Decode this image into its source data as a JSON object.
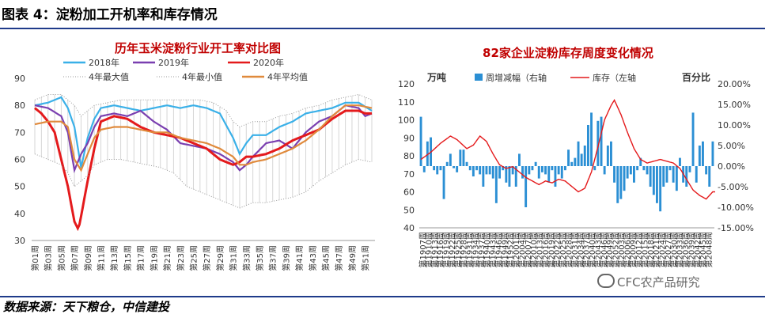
{
  "figure_title": "图表 4：淀粉加工开机率和库存情况",
  "source": "数据来源：天下粮仓，中信建投",
  "watermark": "CFC农产品研究",
  "colors": {
    "rule": "#1f3b8a",
    "chart_title": "#c00000",
    "y2018": "#3ab0e8",
    "y2019": "#7a3fb0",
    "y2020": "#e41a1c",
    "avg4": "#e08a3c",
    "band": "#999999",
    "bars": "#2b8fd4",
    "inventory": "#e41a1c"
  },
  "chart_data": [
    {
      "type": "line",
      "title": "历年玉米淀粉行业开工率对比图",
      "ylim": [
        30,
        90
      ],
      "yticks": [
        30,
        40,
        50,
        60,
        70,
        80,
        90
      ],
      "xlabels": [
        "第01周",
        "第03周",
        "第05周",
        "第07周",
        "第09周",
        "第11周",
        "第13周",
        "第15周",
        "第17周",
        "第19周",
        "第21周",
        "第23周",
        "第25周",
        "第27周",
        "第29周",
        "第31周",
        "第33周",
        "第35周",
        "第37周",
        "第39周",
        "第41周",
        "第43周",
        "第45周",
        "第47周",
        "第49周",
        "第51周"
      ],
      "x_count": 52,
      "legend": [
        "2018年",
        "2019年",
        "2020年",
        "4年最大值",
        "4年最小值",
        "4年平均值"
      ],
      "series": [
        {
          "name": "2018年",
          "key": "y2018",
          "style": "solid",
          "anchors": [
            [
              1,
              80
            ],
            [
              3,
              81
            ],
            [
              5,
              83
            ],
            [
              6,
              79
            ],
            [
              7,
              72
            ],
            [
              8,
              57
            ],
            [
              9,
              68
            ],
            [
              10,
              75
            ],
            [
              11,
              79
            ],
            [
              13,
              80
            ],
            [
              15,
              79
            ],
            [
              17,
              78
            ],
            [
              19,
              79
            ],
            [
              21,
              80
            ],
            [
              23,
              79
            ],
            [
              25,
              80
            ],
            [
              27,
              79
            ],
            [
              29,
              77
            ],
            [
              31,
              68
            ],
            [
              32,
              62
            ],
            [
              33,
              66
            ],
            [
              34,
              69
            ],
            [
              36,
              69
            ],
            [
              38,
              72
            ],
            [
              40,
              74
            ],
            [
              42,
              77
            ],
            [
              44,
              78
            ],
            [
              46,
              79
            ],
            [
              48,
              81
            ],
            [
              50,
              81
            ],
            [
              52,
              78
            ]
          ]
        },
        {
          "name": "2019年",
          "key": "y2019",
          "style": "solid",
          "anchors": [
            [
              1,
              80
            ],
            [
              3,
              79
            ],
            [
              5,
              76
            ],
            [
              6,
              70
            ],
            [
              7,
              56
            ],
            [
              8,
              62
            ],
            [
              9,
              66
            ],
            [
              10,
              72
            ],
            [
              11,
              76
            ],
            [
              13,
              77
            ],
            [
              15,
              76
            ],
            [
              17,
              78
            ],
            [
              19,
              74
            ],
            [
              21,
              71
            ],
            [
              23,
              66
            ],
            [
              25,
              65
            ],
            [
              27,
              64
            ],
            [
              29,
              62
            ],
            [
              31,
              59
            ],
            [
              32,
              56
            ],
            [
              33,
              58
            ],
            [
              34,
              61
            ],
            [
              36,
              66
            ],
            [
              38,
              67
            ],
            [
              40,
              64
            ],
            [
              41,
              67
            ],
            [
              42,
              70
            ],
            [
              44,
              74
            ],
            [
              46,
              76
            ],
            [
              48,
              80
            ],
            [
              50,
              79
            ],
            [
              51,
              76
            ],
            [
              52,
              77
            ]
          ]
        },
        {
          "name": "2020年",
          "key": "y2020",
          "style": "solid",
          "anchors": [
            [
              1,
              79
            ],
            [
              2,
              77
            ],
            [
              3,
              74
            ],
            [
              4,
              70
            ],
            [
              5,
              60
            ],
            [
              6,
              50
            ],
            [
              7,
              37
            ],
            [
              7.6,
              34
            ],
            [
              8,
              39
            ],
            [
              9,
              52
            ],
            [
              10,
              64
            ],
            [
              11,
              74
            ],
            [
              13,
              76
            ],
            [
              15,
              75
            ],
            [
              17,
              72
            ],
            [
              19,
              70
            ],
            [
              21,
              69
            ],
            [
              23,
              68
            ],
            [
              25,
              66
            ],
            [
              27,
              64
            ],
            [
              28,
              62
            ],
            [
              29,
              60
            ],
            [
              31,
              58
            ],
            [
              32,
              59
            ],
            [
              33,
              61
            ],
            [
              34,
              61
            ],
            [
              36,
              62
            ],
            [
              38,
              64
            ],
            [
              40,
              67
            ],
            [
              42,
              69
            ],
            [
              44,
              71
            ],
            [
              46,
              75
            ],
            [
              48,
              78
            ],
            [
              50,
              78
            ],
            [
              51,
              77
            ],
            [
              52,
              77
            ]
          ]
        },
        {
          "name": "4年最大值",
          "key": "band",
          "style": "dotted",
          "anchors": [
            [
              1,
              82
            ],
            [
              3,
              84
            ],
            [
              5,
              84
            ],
            [
              6,
              82
            ],
            [
              7,
              80
            ],
            [
              8,
              76
            ],
            [
              9,
              78
            ],
            [
              10,
              80
            ],
            [
              12,
              81
            ],
            [
              14,
              82
            ],
            [
              16,
              82
            ],
            [
              18,
              82
            ],
            [
              20,
              82
            ],
            [
              22,
              82
            ],
            [
              24,
              82
            ],
            [
              26,
              82
            ],
            [
              28,
              81
            ],
            [
              30,
              78
            ],
            [
              31,
              74
            ],
            [
              32,
              72
            ],
            [
              33,
              73
            ],
            [
              34,
              74
            ],
            [
              36,
              74
            ],
            [
              38,
              76
            ],
            [
              40,
              77
            ],
            [
              42,
              79
            ],
            [
              44,
              80
            ],
            [
              46,
              82
            ],
            [
              48,
              83
            ],
            [
              50,
              84
            ],
            [
              52,
              82
            ]
          ]
        },
        {
          "name": "4年最小值",
          "key": "band",
          "style": "dotted",
          "anchors": [
            [
              1,
              62
            ],
            [
              3,
              60
            ],
            [
              5,
              58
            ],
            [
              6,
              55
            ],
            [
              7,
              50
            ],
            [
              8,
              52
            ],
            [
              9,
              54
            ],
            [
              10,
              58
            ],
            [
              12,
              60
            ],
            [
              14,
              60
            ],
            [
              16,
              59
            ],
            [
              18,
              58
            ],
            [
              20,
              57
            ],
            [
              22,
              55
            ],
            [
              24,
              50
            ],
            [
              26,
              48
            ],
            [
              28,
              46
            ],
            [
              30,
              44
            ],
            [
              31,
              43
            ],
            [
              32,
              42
            ],
            [
              33,
              43
            ],
            [
              34,
              44
            ],
            [
              36,
              44
            ],
            [
              38,
              45
            ],
            [
              40,
              46
            ],
            [
              42,
              48
            ],
            [
              44,
              52
            ],
            [
              46,
              55
            ],
            [
              48,
              58
            ],
            [
              50,
              60
            ],
            [
              52,
              59
            ]
          ]
        },
        {
          "name": "4年平均值",
          "key": "avg4",
          "style": "solid",
          "anchors": [
            [
              1,
              73
            ],
            [
              3,
              74
            ],
            [
              5,
              74
            ],
            [
              6,
              72
            ],
            [
              7,
              60
            ],
            [
              8,
              56
            ],
            [
              9,
              62
            ],
            [
              10,
              68
            ],
            [
              11,
              71
            ],
            [
              13,
              72
            ],
            [
              15,
              72
            ],
            [
              17,
              71
            ],
            [
              19,
              70
            ],
            [
              21,
              70
            ],
            [
              23,
              68
            ],
            [
              25,
              67
            ],
            [
              27,
              66
            ],
            [
              29,
              64
            ],
            [
              31,
              61
            ],
            [
              32,
              58
            ],
            [
              33,
              58
            ],
            [
              34,
              59
            ],
            [
              36,
              60
            ],
            [
              38,
              62
            ],
            [
              40,
              64
            ],
            [
              42,
              67
            ],
            [
              44,
              71
            ],
            [
              46,
              76
            ],
            [
              48,
              80
            ],
            [
              50,
              80
            ],
            [
              52,
              79
            ]
          ]
        }
      ]
    },
    {
      "type": "bar+line",
      "title": "82家企业淀粉库存周度变化情况",
      "left_axis_label": "万吨",
      "right_axis_label": "百分比",
      "ylim_left": [
        40,
        120
      ],
      "yticks_left": [
        40,
        50,
        60,
        70,
        80,
        90,
        100,
        110,
        120
      ],
      "ylim_right": [
        -15,
        20
      ],
      "yticks_right": [
        "20.00%",
        "15.00%",
        "10.00%",
        "5.00%",
        "0.00%",
        "-5.00%",
        "-10.00%",
        "-15.00%"
      ],
      "yticks_right_values": [
        20,
        15,
        10,
        5,
        0,
        -5,
        -10,
        -15
      ],
      "legend": [
        "周增减幅（右轴",
        "库存（左轴"
      ],
      "x_count": 90,
      "xlabels": [
        "1907",
        "1910",
        "1913",
        "1916",
        "1919",
        "1922",
        "1925",
        "1928",
        "1931",
        "1934",
        "1937",
        "1940",
        "1943",
        "1946",
        "1949",
        "1952",
        "2001",
        "2004",
        "2007",
        "2010",
        "2013",
        "2016",
        "2019",
        "2022",
        "2025",
        "2028",
        "2031",
        "2034",
        "2037",
        "2040",
        "2043",
        "2046",
        "2049",
        "2052",
        "2003",
        "2006",
        "2009",
        "2012",
        "2015",
        "2018",
        "2021",
        "2024",
        "2027",
        "2030",
        "2033",
        "2036",
        "2039",
        "2042",
        "2045",
        "2048"
      ],
      "label_prefix": "第",
      "label_suffix": "周",
      "inventory_anchors": [
        [
          0,
          78
        ],
        [
          3,
          82
        ],
        [
          6,
          87
        ],
        [
          9,
          91
        ],
        [
          11,
          89
        ],
        [
          14,
          84
        ],
        [
          16,
          86
        ],
        [
          18,
          91
        ],
        [
          20,
          88
        ],
        [
          22,
          81
        ],
        [
          24,
          75
        ],
        [
          26,
          73
        ],
        [
          28,
          74
        ],
        [
          30,
          71
        ],
        [
          32,
          68
        ],
        [
          34,
          66
        ],
        [
          36,
          64
        ],
        [
          38,
          66
        ],
        [
          40,
          65
        ],
        [
          42,
          67
        ],
        [
          44,
          66
        ],
        [
          46,
          63
        ],
        [
          48,
          60
        ],
        [
          50,
          62
        ],
        [
          52,
          71
        ],
        [
          54,
          85
        ],
        [
          56,
          100
        ],
        [
          58,
          108
        ],
        [
          59,
          111
        ],
        [
          61,
          103
        ],
        [
          63,
          93
        ],
        [
          65,
          84
        ],
        [
          67,
          78
        ],
        [
          69,
          76
        ],
        [
          71,
          77
        ],
        [
          73,
          78
        ],
        [
          75,
          77
        ],
        [
          77,
          76
        ],
        [
          79,
          73
        ],
        [
          81,
          67
        ],
        [
          83,
          61
        ],
        [
          85,
          58
        ],
        [
          87,
          56
        ],
        [
          89,
          60
        ]
      ],
      "weekly_change_pct": [
        12.0,
        -1.5,
        6.0,
        7.0,
        -1.0,
        -2.0,
        -1.0,
        -8.0,
        1.0,
        3.0,
        -0.5,
        -1.5,
        4.0,
        4.0,
        1.0,
        -1.0,
        -2.5,
        -1.0,
        -2.0,
        -5.0,
        -2.0,
        -2.0,
        -3.0,
        -9.0,
        -3.0,
        -1.0,
        -4.0,
        -5.0,
        -2.0,
        -5.0,
        3.0,
        -3.0,
        -10.0,
        -2.0,
        -1.0,
        1.0,
        -3.0,
        -1.5,
        -2.0,
        -4.0,
        -1.0,
        -5.0,
        -2.0,
        -3.0,
        -1.0,
        4.0,
        1.0,
        2.0,
        6.0,
        3.0,
        5.0,
        10.0,
        13.0,
        -1.0,
        11.0,
        12.0,
        -2.0,
        5.0,
        6.0,
        -4.0,
        -9.0,
        -8.0,
        -6.0,
        -3.0,
        -2.0,
        -4.0,
        -1.0,
        2.0,
        -1.0,
        -2.0,
        -5.0,
        -7.0,
        -9.0,
        -11.0,
        -5.0,
        -4.0,
        -1.0,
        -4.0,
        -6.0,
        2.0,
        -4.0,
        -5.0,
        -1.5,
        13.0,
        -4.0,
        5.0,
        6.0,
        -2.0,
        -5.0,
        6.0
      ]
    }
  ]
}
